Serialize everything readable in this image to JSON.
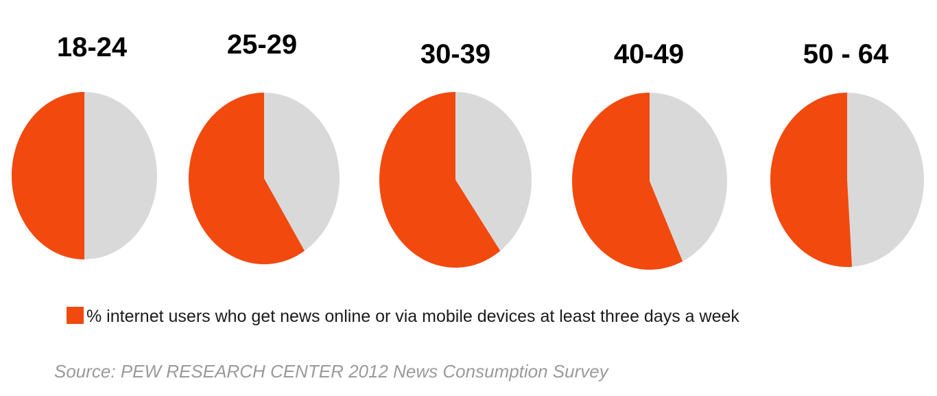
{
  "chart_data": {
    "type": "pie",
    "series_name": "% internet users who get news online or via mobile devices at least three days a week",
    "categories": [
      "18-24",
      "25-29",
      "30-39",
      "40-49",
      "50 - 64"
    ],
    "values": [
      50,
      59,
      60,
      57,
      51
    ],
    "colors": {
      "value": "#f2490f",
      "remainder": "#d9d9d9"
    },
    "legend": {
      "label": "% internet users who get news online or via mobile devices at least three days a week",
      "position": "bottom"
    },
    "source": "Source: PEW RESEARCH CENTER 2012 News Consumption Survey"
  }
}
